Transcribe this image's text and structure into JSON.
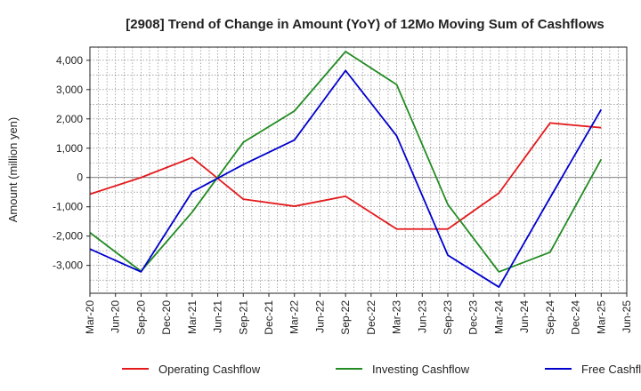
{
  "chart_data": {
    "type": "line",
    "title": "[2908]  Trend of Change in Amount (YoY) of 12Mo Moving Sum of Cashflows",
    "xlabel": "",
    "ylabel": "Amount (million yen)",
    "categories": [
      "Mar-20",
      "Jun-20",
      "Sep-20",
      "Dec-20",
      "Mar-21",
      "Jun-21",
      "Sep-21",
      "Dec-21",
      "Mar-22",
      "Jun-22",
      "Sep-22",
      "Dec-22",
      "Mar-23",
      "Jun-23",
      "Sep-23",
      "Dec-23",
      "Mar-24",
      "Jun-24",
      "Sep-24",
      "Dec-24",
      "Mar-25",
      "Jun-25"
    ],
    "ylim": [
      -3950,
      4450
    ],
    "yticks": [
      -3000,
      -2000,
      -1000,
      0,
      1000,
      2000,
      3000,
      4000
    ],
    "ytick_labels": [
      "-3,000",
      "-2,000",
      "-1,000",
      "0",
      "1,000",
      "2,000",
      "3,000",
      "4,000"
    ],
    "grid": true,
    "legend_position": "bottom",
    "series": [
      {
        "name": "Operating Cashflow",
        "color": "#e41a1c",
        "points": [
          {
            "x": "Mar-20",
            "y": -570
          },
          {
            "x": "Sep-20",
            "y": 0
          },
          {
            "x": "Mar-21",
            "y": 680
          },
          {
            "x": "Sep-21",
            "y": -740
          },
          {
            "x": "Mar-22",
            "y": -980
          },
          {
            "x": "Sep-22",
            "y": -640
          },
          {
            "x": "Mar-23",
            "y": -1760
          },
          {
            "x": "Sep-23",
            "y": -1760
          },
          {
            "x": "Mar-24",
            "y": -530
          },
          {
            "x": "Sep-24",
            "y": 1860
          },
          {
            "x": "Mar-25",
            "y": 1700
          }
        ]
      },
      {
        "name": "Investing Cashflow",
        "color": "#228b22",
        "points": [
          {
            "x": "Mar-20",
            "y": -1880
          },
          {
            "x": "Sep-20",
            "y": -3200
          },
          {
            "x": "Mar-21",
            "y": -1180
          },
          {
            "x": "Sep-21",
            "y": 1200
          },
          {
            "x": "Mar-22",
            "y": 2270
          },
          {
            "x": "Sep-22",
            "y": 4300
          },
          {
            "x": "Mar-23",
            "y": 3170
          },
          {
            "x": "Sep-23",
            "y": -920
          },
          {
            "x": "Mar-24",
            "y": -3220
          },
          {
            "x": "Sep-24",
            "y": -2550
          },
          {
            "x": "Mar-25",
            "y": 620
          }
        ]
      },
      {
        "name": "Free Cashflow",
        "color": "#0000cd",
        "points": [
          {
            "x": "Mar-20",
            "y": -2440
          },
          {
            "x": "Sep-20",
            "y": -3220
          },
          {
            "x": "Mar-21",
            "y": -490
          },
          {
            "x": "Sep-21",
            "y": 440
          },
          {
            "x": "Mar-22",
            "y": 1280
          },
          {
            "x": "Sep-22",
            "y": 3650
          },
          {
            "x": "Mar-23",
            "y": 1420
          },
          {
            "x": "Sep-23",
            "y": -2650
          },
          {
            "x": "Mar-24",
            "y": -3740
          },
          {
            "x": "Sep-24",
            "y": -690
          },
          {
            "x": "Mar-25",
            "y": 2320
          }
        ]
      }
    ]
  }
}
